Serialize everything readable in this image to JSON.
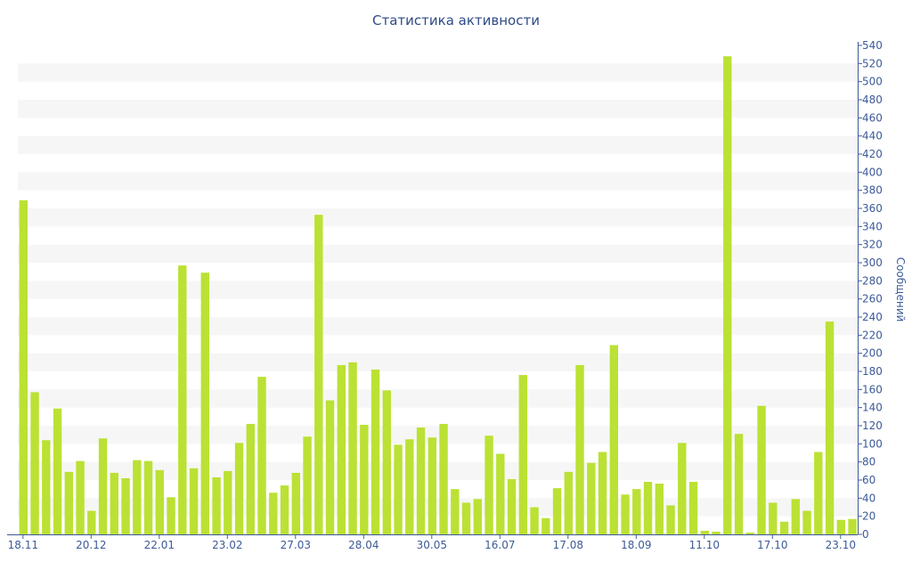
{
  "chart_data": {
    "type": "bar",
    "title": "Статистика активности",
    "xlabel": "",
    "ylabel": "Сообщений",
    "ylim": [
      0,
      540
    ],
    "y_ticks": [
      0,
      20,
      40,
      60,
      80,
      100,
      120,
      140,
      160,
      180,
      200,
      220,
      240,
      260,
      280,
      300,
      320,
      340,
      360,
      380,
      400,
      420,
      440,
      460,
      480,
      500,
      520,
      540
    ],
    "y_axis_side": "right",
    "grid": "alternating horizontal bands",
    "x_tick_labels": [
      {
        "index": 0,
        "label": "18.11"
      },
      {
        "index": 6,
        "label": "20.12"
      },
      {
        "index": 12,
        "label": "22.01"
      },
      {
        "index": 18,
        "label": "23.02"
      },
      {
        "index": 24,
        "label": "27.03"
      },
      {
        "index": 30,
        "label": "28.04"
      },
      {
        "index": 36,
        "label": "30.05"
      },
      {
        "index": 42,
        "label": "16.07"
      },
      {
        "index": 48,
        "label": "17.08"
      },
      {
        "index": 54,
        "label": "18.09"
      },
      {
        "index": 60,
        "label": "11.10"
      },
      {
        "index": 66,
        "label": "17.10"
      },
      {
        "index": 72,
        "label": "23.10"
      }
    ],
    "values": [
      369,
      157,
      104,
      139,
      69,
      81,
      26,
      106,
      68,
      62,
      82,
      81,
      71,
      41,
      297,
      73,
      289,
      63,
      70,
      101,
      122,
      174,
      46,
      54,
      68,
      108,
      353,
      148,
      187,
      190,
      121,
      182,
      159,
      99,
      105,
      118,
      107,
      122,
      50,
      35,
      39,
      109,
      89,
      61,
      176,
      30,
      18,
      51,
      69,
      187,
      79,
      91,
      209,
      44,
      50,
      58,
      56,
      32,
      101,
      58,
      4,
      3,
      528,
      111,
      2,
      142,
      35,
      14,
      39,
      26,
      91,
      235,
      16,
      17
    ],
    "colors": {
      "bar": "#bbe134",
      "axis": "#3d5a98",
      "band": "#f6f6f6",
      "title": "#2f4a86"
    }
  }
}
